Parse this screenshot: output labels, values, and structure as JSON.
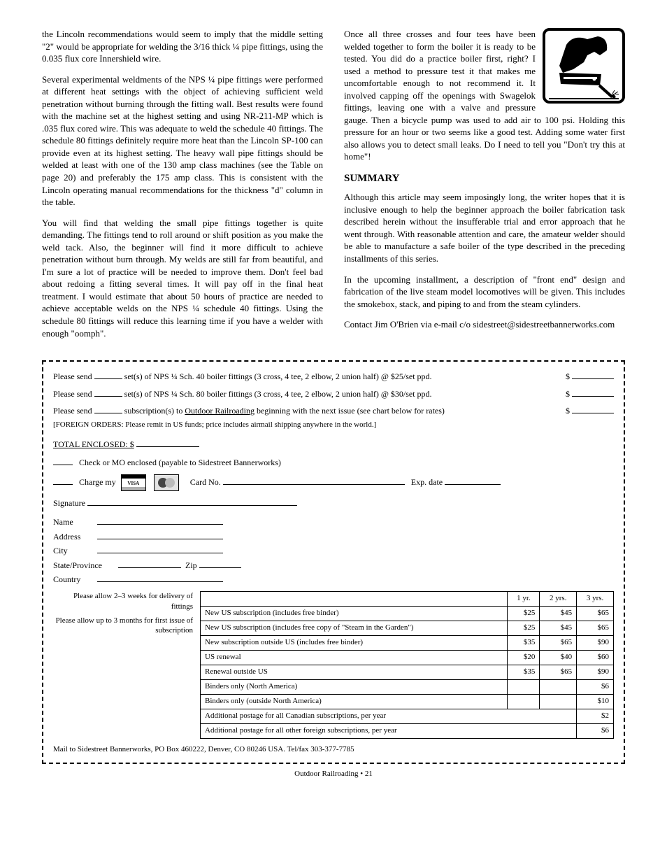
{
  "left_col": {
    "p1": "the Lincoln recommendations would seem to imply that the middle setting \"2\" would be appropriate for welding the 3/16 thick ¼ pipe fittings, using the 0.035 flux core Innershield wire.",
    "p2": "Several experimental weldments of the NPS ¼ pipe fittings were performed at different heat settings with the object of achieving sufficient weld penetration without burning through the fitting wall. Best results were found with the machine set at the highest setting and using NR-211-MP which is .035 flux cored wire. This was adequate to weld the schedule 40 fittings. The schedule 80 fittings definitely require more heat than the Lincoln SP-100 can provide even at its highest setting. The heavy wall pipe fittings should be welded at least with one of the 130 amp class machines (see the Table on page 20) and preferably the 175 amp class. This is consistent with the Lincoln operating manual recommendations for the thickness \"d\" column in the table.",
    "p3": "You will find that welding the small pipe fittings together is quite demanding. The fittings tend to roll around or shift position as you make the weld tack. Also, the beginner will find it more difficult to achieve penetration without burn through. My welds are still far from beautiful, and I'm sure a lot of practice will be needed to improve them. Don't feel bad about redoing a fitting several times. It will pay off in the final heat treatment. I would estimate that about 50 hours of practice are needed to achieve acceptable welds on the NPS ¼ schedule 40 fittings. Using the schedule 80 fittings will reduce this learning time if you have a welder with enough \"oomph\"."
  },
  "right_col": {
    "p1": "Once all three crosses and four tees have been welded together to form the boiler it is ready to be tested. You did do a practice boiler first, right? I used a method to pressure test it that makes me uncomfortable enough to not recommend it. It involved capping off the openings with Swagelok fittings, leaving one with a valve and pressure gauge. Then a bicycle pump was used to add air to 100 psi. Holding this pressure for an hour or two seems like a good test. Adding some water first also allows you to detect small leaks. Do I need to tell you \"Don't try this at home\"!",
    "h": "SUMMARY",
    "p2": "Although this article may seem imposingly long, the writer hopes that it is inclusive enough to help the beginner approach the boiler fabrication task described herein without the insufferable trial and error approach that he went through. With reasonable attention and care, the amateur welder should be able to manufacture a safe boiler of the type described in the preceding installments of this series.",
    "p3": "In the upcoming installment, a description of \"front end\" design and fabrication of the live steam model locomotives will be given. This includes the smokebox, stack, and piping to and from the steam cylinders.",
    "p4": "Contact Jim O'Brien via e-mail c/o sidestreet@sidestreetbannerworks.com"
  },
  "order": {
    "line1a": "Please send ",
    "line1b": " set(s) of NPS ¼ Sch. 40 boiler fittings (3 cross, 4 tee, 2 elbow, 2 union half) @ $25/set ppd.",
    "line1_total_label": "$",
    "line2a": "Please send ",
    "line2b": " set(s) of NPS ¼ Sch. 80 boiler fittings (3 cross, 4 tee, 2 elbow, 2 union half) @ $30/set ppd.",
    "line2_total_label": "$",
    "line3a": "Please send ",
    "line3b": " subscription(s) to ",
    "line3c": "Outdoor Railroading",
    "line3d": " beginning with the next issue (see chart below for rates)",
    "line3_total_label": "$",
    "line4a": "[FOREIGN ORDERS: Please remit in US funds; price includes airmail shipping anywhere in the world.]",
    "total_label": "TOTAL ENCLOSED: $",
    "pay_check": "Check or MO enclosed (payable to Sidestreet Bannerworks)",
    "pay_card": "Charge my",
    "card_no": "Card No.",
    "card_exp": "Exp. date",
    "sig": "Signature",
    "name": "Name",
    "addr": "Address",
    "city": "City",
    "state": "State/Province",
    "zip": "Zip",
    "country": "Country",
    "mail_to": "Mail to Sidestreet Bannerworks, PO Box 460222, Denver, CO 80246 USA. Tel/fax 303-377-7785",
    "ship_note": "Please allow 2–3 weeks for delivery of fittings",
    "ship_note2": "Please allow up to 3 months for first issue of subscription",
    "table": {
      "headers": [
        "",
        "1 yr.",
        "2 yrs.",
        "3 yrs."
      ],
      "rows": [
        [
          "New US subscription (includes free binder)",
          "$25",
          "$45",
          "$65"
        ],
        [
          "New US subscription (includes free copy of \"Steam in the Garden\")",
          "$25",
          "$45",
          "$65"
        ],
        [
          "New subscription outside US (includes free binder)",
          "$35",
          "$65",
          "$90"
        ],
        [
          "US renewal",
          "$20",
          "$40",
          "$60"
        ],
        [
          "Renewal outside US",
          "$35",
          "$65",
          "$90"
        ],
        [
          "Binders only (North America)",
          "",
          "",
          "$6"
        ],
        [
          "Binders only (outside North America)",
          "",
          "",
          "$10"
        ]
      ],
      "footer1": [
        "Additional postage for all Canadian subscriptions, per year",
        "$2"
      ],
      "footer2": [
        "Additional postage for all other foreign subscriptions, per year",
        "$6"
      ]
    }
  },
  "footer": "Outdoor Railroading    •    21"
}
